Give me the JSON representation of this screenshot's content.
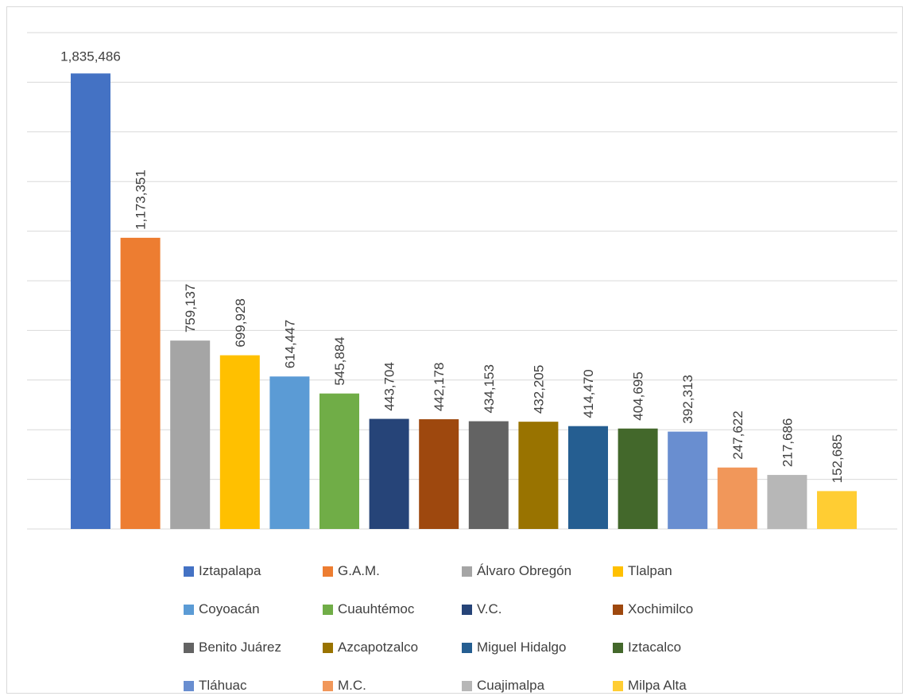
{
  "chart_data": {
    "type": "bar",
    "title": "",
    "xlabel": "",
    "ylabel": "",
    "ylim": [
      0,
      2000000
    ],
    "grid": true,
    "legend_position": "bottom",
    "categories": [
      "Iztapalapa",
      "G.A.M.",
      "Álvaro Obregón",
      "Tlalpan",
      "Coyoacán",
      "Cuauhtémoc",
      "V.C.",
      "Xochimilco",
      "Benito Juárez",
      "Azcapotzalco",
      "Miguel Hidalgo",
      "Iztacalco",
      "Tláhuac",
      "M.C.",
      "Cuajimalpa",
      "Milpa Alta"
    ],
    "values": [
      1835486,
      1173351,
      759137,
      699928,
      614447,
      545884,
      443704,
      442178,
      434153,
      432205,
      414470,
      404695,
      392313,
      247622,
      217686,
      152685
    ],
    "value_labels": [
      "1,835,486",
      "1,173,351",
      "759,137",
      "699,928",
      "614,447",
      "545,884",
      "443,704",
      "442,178",
      "434,153",
      "432,205",
      "414,470",
      "404,695",
      "392,313",
      "247,622",
      "217,686",
      "152,685"
    ],
    "colors": [
      "#4472c4",
      "#ed7d31",
      "#a5a5a5",
      "#ffc000",
      "#5b9bd5",
      "#70ad47",
      "#264478",
      "#9e480e",
      "#636363",
      "#997300",
      "#255e91",
      "#43682b",
      "#698ed0",
      "#f1975a",
      "#b7b7b7",
      "#ffcd33"
    ]
  }
}
